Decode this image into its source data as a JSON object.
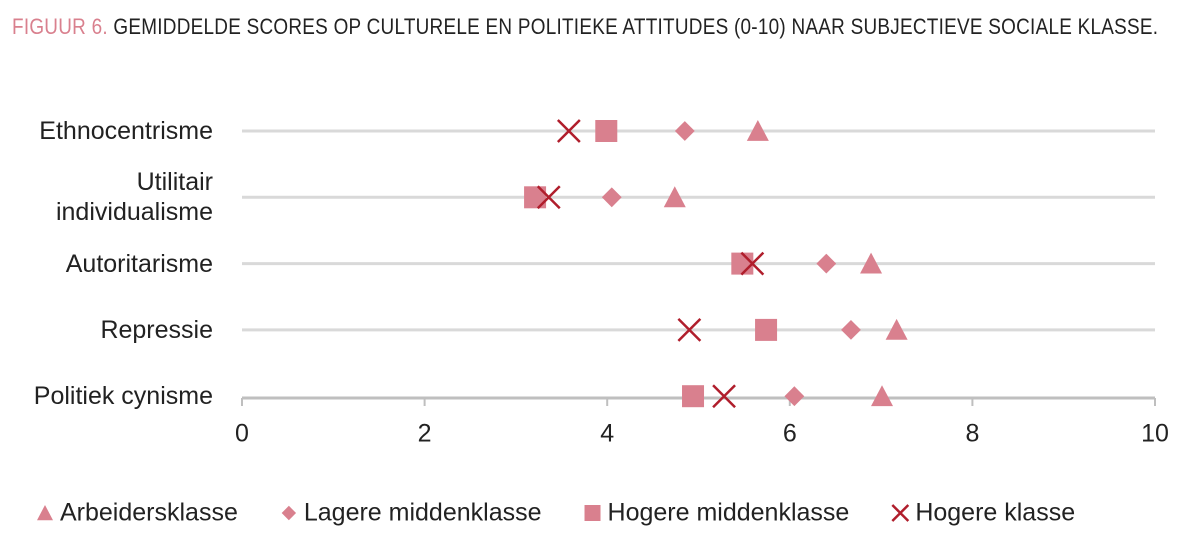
{
  "chart_data": {
    "type": "dot",
    "title_prefix": "FIGUUR 6.",
    "title": "GEMIDDELDE SCORES OP CULTURELE EN POLITIEKE ATTITUDES (0-10) NAAR SUBJECTIEVE SOCIALE KLASSE.",
    "categories": [
      "Ethnocentrisme",
      "Utilitair individualisme",
      "Autoritarisme",
      "Repressie",
      "Politiek cynisme"
    ],
    "series": [
      {
        "name": "Arbeidersklasse",
        "marker": "triangle",
        "color": "#d9808e",
        "values": [
          5.65,
          4.74,
          6.89,
          7.17,
          7.01
        ]
      },
      {
        "name": "Lagere middenklasse",
        "marker": "diamond",
        "color": "#d9808e",
        "values": [
          4.85,
          4.05,
          6.4,
          6.67,
          6.05
        ]
      },
      {
        "name": "Hogere middenklasse",
        "marker": "square",
        "color": "#d9808e",
        "values": [
          3.99,
          3.21,
          5.48,
          5.74,
          4.94
        ]
      },
      {
        "name": "Hogere klasse",
        "marker": "cross",
        "color": "#b01e2c",
        "values": [
          3.58,
          3.36,
          5.59,
          4.9,
          5.28
        ]
      }
    ],
    "xlim": [
      0,
      10
    ],
    "xticks": [
      0,
      2,
      4,
      6,
      8,
      10
    ],
    "grid": true,
    "legend": "bottom"
  }
}
